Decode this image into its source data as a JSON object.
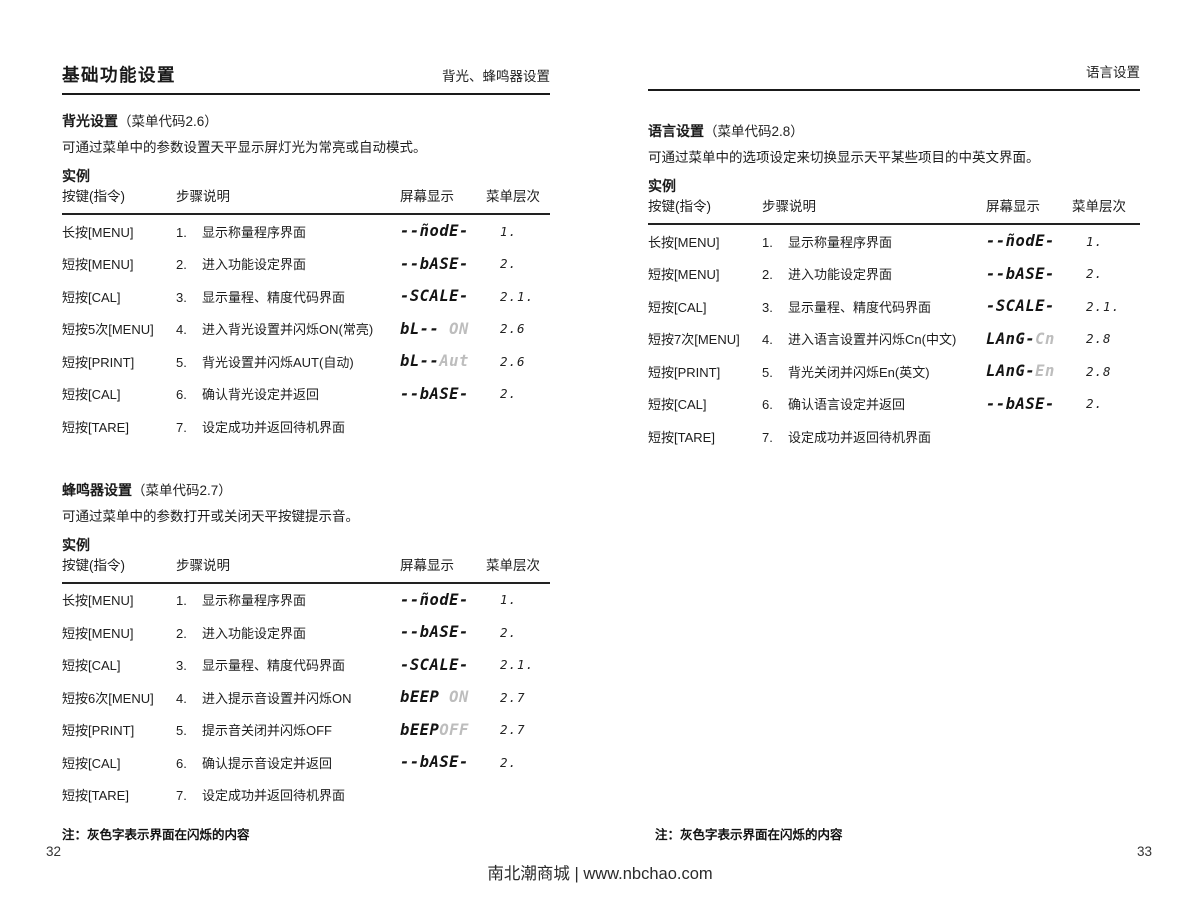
{
  "footer": {
    "text": "南北潮商城 | www.nbchao.com"
  },
  "colors": {
    "display_dark": "#141414",
    "display_flash": "#bdbdbd",
    "rule": "#1a1a1a"
  },
  "pages": [
    {
      "header_left": "基础功能设置",
      "header_right": "背光、蜂鸣器设置",
      "page_number": "32",
      "note": "注：灰色字表示界面在闪烁的内容",
      "sections": [
        {
          "id": "backlight",
          "title": "背光设置",
          "title_paren": "（菜单代码2.6）",
          "description": "可通过菜单中的参数设置天平显示屏灯光为常亮或自动模式。",
          "example_label": "实例",
          "columns": [
            "按键(指令)",
            "步骤说明",
            "屏幕显示",
            "菜单层次"
          ],
          "rows": [
            {
              "key": "长按[MENU]",
              "step_no": "1.",
              "step": "显示称量程序界面",
              "display_dark": "--ñodE-",
              "display_flash": "",
              "level": "1."
            },
            {
              "key": "短按[MENU]",
              "step_no": "2.",
              "step": "进入功能设定界面",
              "display_dark": "--bASE-",
              "display_flash": "",
              "level": "2."
            },
            {
              "key": "短按[CAL]",
              "step_no": "3.",
              "step": "显示量程、精度代码界面",
              "display_dark": "-SCALE-",
              "display_flash": "",
              "level": "2.1."
            },
            {
              "key": "短按5次[MENU]",
              "step_no": "4.",
              "step": "进入背光设置并闪烁ON(常亮)",
              "display_dark": "bL--",
              "display_flash": " ON",
              "level": "2.6"
            },
            {
              "key": "短按[PRINT]",
              "step_no": "5.",
              "step": "背光设置并闪烁AUT(自动)",
              "display_dark": "bL--",
              "display_flash": "Aut",
              "level": "2.6"
            },
            {
              "key": "短按[CAL]",
              "step_no": "6.",
              "step": "确认背光设定并返回",
              "display_dark": "--bASE-",
              "display_flash": "",
              "level": "2."
            },
            {
              "key": "短按[TARE]",
              "step_no": "7.",
              "step": "设定成功并返回待机界面",
              "display_dark": "",
              "display_flash": "",
              "level": ""
            }
          ]
        },
        {
          "id": "beeper",
          "title": "蜂鸣器设置",
          "title_paren": "（菜单代码2.7）",
          "description": "可通过菜单中的参数打开或关闭天平按键提示音。",
          "example_label": "实例",
          "columns": [
            "按键(指令)",
            "步骤说明",
            "屏幕显示",
            "菜单层次"
          ],
          "rows": [
            {
              "key": "长按[MENU]",
              "step_no": "1.",
              "step": "显示称量程序界面",
              "display_dark": "--ñodE-",
              "display_flash": "",
              "level": "1."
            },
            {
              "key": "短按[MENU]",
              "step_no": "2.",
              "step": "进入功能设定界面",
              "display_dark": "--bASE-",
              "display_flash": "",
              "level": "2."
            },
            {
              "key": "短按[CAL]",
              "step_no": "3.",
              "step": "显示量程、精度代码界面",
              "display_dark": "-SCALE-",
              "display_flash": "",
              "level": "2.1."
            },
            {
              "key": "短按6次[MENU]",
              "step_no": "4.",
              "step": "进入提示音设置并闪烁ON",
              "display_dark": "bEEP",
              "display_flash": " ON",
              "level": "2.7"
            },
            {
              "key": "短按[PRINT]",
              "step_no": "5.",
              "step": "提示音关闭并闪烁OFF",
              "display_dark": "bEEP",
              "display_flash": "OFF",
              "level": "2.7"
            },
            {
              "key": "短按[CAL]",
              "step_no": "6.",
              "step": "确认提示音设定并返回",
              "display_dark": "--bASE-",
              "display_flash": "",
              "level": "2."
            },
            {
              "key": "短按[TARE]",
              "step_no": "7.",
              "step": "设定成功并返回待机界面",
              "display_dark": "",
              "display_flash": "",
              "level": ""
            }
          ]
        }
      ]
    },
    {
      "header_left": "",
      "header_right": "语言设置",
      "page_number": "33",
      "note": "注：灰色字表示界面在闪烁的内容",
      "sections": [
        {
          "id": "language",
          "title": "语言设置",
          "title_paren": "（菜单代码2.8）",
          "description": "可通过菜单中的选项设定来切换显示天平某些项目的中英文界面。",
          "example_label": "实例",
          "columns": [
            "按键(指令)",
            "步骤说明",
            "屏幕显示",
            "菜单层次"
          ],
          "rows": [
            {
              "key": "长按[MENU]",
              "step_no": "1.",
              "step": "显示称量程序界面",
              "display_dark": "--ñodE-",
              "display_flash": "",
              "level": "1."
            },
            {
              "key": "短按[MENU]",
              "step_no": "2.",
              "step": "进入功能设定界面",
              "display_dark": "--bASE-",
              "display_flash": "",
              "level": "2."
            },
            {
              "key": "短按[CAL]",
              "step_no": "3.",
              "step": "显示量程、精度代码界面",
              "display_dark": "-SCALE-",
              "display_flash": "",
              "level": "2.1."
            },
            {
              "key": "短按7次[MENU]",
              "step_no": "4.",
              "step": "进入语言设置并闪烁Cn(中文)",
              "display_dark": "LAnG-",
              "display_flash": "Cn",
              "level": "2.8"
            },
            {
              "key": "短按[PRINT]",
              "step_no": "5.",
              "step": "背光关闭并闪烁En(英文)",
              "display_dark": "LAnG-",
              "display_flash": "En",
              "level": "2.8"
            },
            {
              "key": "短按[CAL]",
              "step_no": "6.",
              "step": "确认语言设定并返回",
              "display_dark": "--bASE-",
              "display_flash": "",
              "level": "2."
            },
            {
              "key": "短按[TARE]",
              "step_no": "7.",
              "step": "设定成功并返回待机界面",
              "display_dark": "",
              "display_flash": "",
              "level": ""
            }
          ]
        }
      ]
    }
  ]
}
